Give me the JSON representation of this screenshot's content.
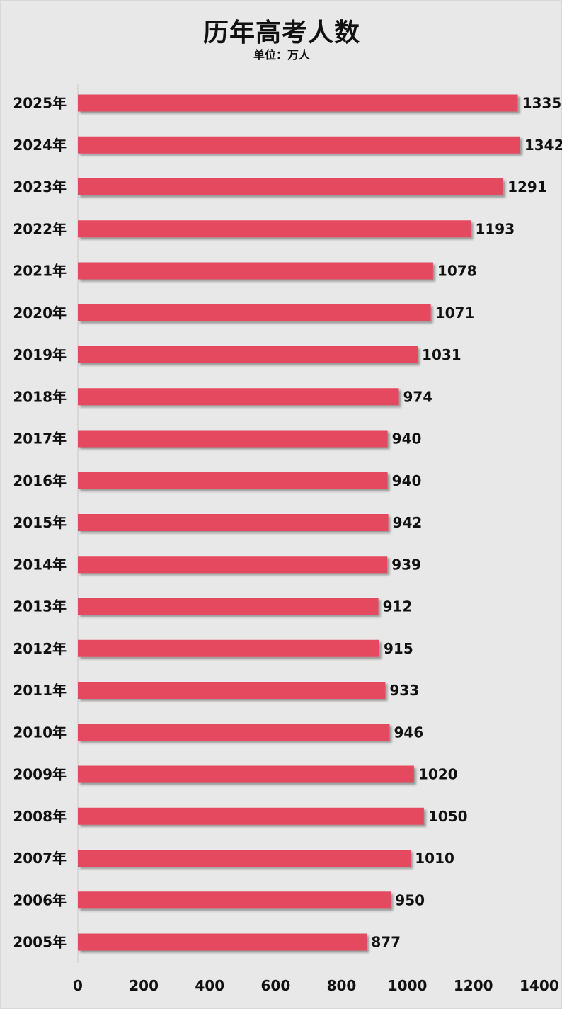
{
  "chart_data": {
    "type": "bar",
    "orientation": "horizontal",
    "title": "历年高考人数",
    "subtitle": "单位：万人",
    "categories": [
      "2025年",
      "2024年",
      "2023年",
      "2022年",
      "2021年",
      "2020年",
      "2019年",
      "2018年",
      "2017年",
      "2016年",
      "2015年",
      "2014年",
      "2013年",
      "2012年",
      "2011年",
      "2010年",
      "2009年",
      "2008年",
      "2007年",
      "2006年",
      "2005年"
    ],
    "values": [
      1335,
      1342,
      1291,
      1193,
      1078,
      1071,
      1031,
      974,
      940,
      940,
      942,
      939,
      912,
      915,
      933,
      946,
      1020,
      1050,
      1010,
      950,
      877
    ],
    "xlim": [
      0,
      1400
    ],
    "xticks": [
      0,
      200,
      400,
      600,
      800,
      1000,
      1200,
      1400
    ],
    "bar_color": "#e54a5e",
    "grid": false,
    "legend": "none"
  }
}
